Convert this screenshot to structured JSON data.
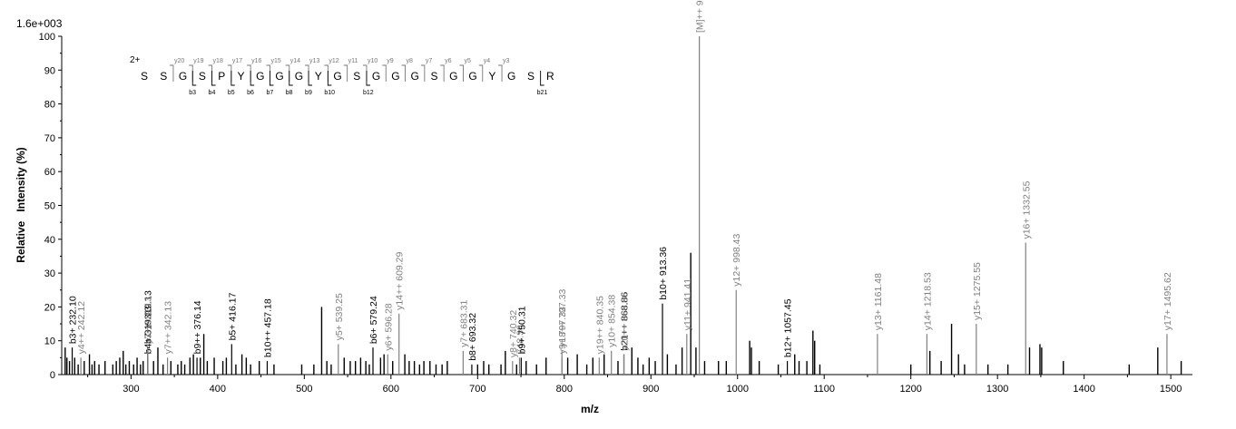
{
  "chart_data": {
    "type": "bar",
    "scale_label": "1.6e+003",
    "xlabel": "m/z",
    "ylabel": "Relative   Intensity (%)",
    "xlim": [
      220,
      1525
    ],
    "ylim": [
      0,
      100
    ],
    "x_ticks": [
      300,
      400,
      500,
      600,
      700,
      800,
      900,
      1000,
      1100,
      1200,
      1300,
      1400,
      1500
    ],
    "y_ticks": [
      0,
      10,
      20,
      30,
      40,
      50,
      60,
      70,
      80,
      90,
      100
    ],
    "colors": {
      "b_ion": "#000000",
      "y_ion": "#808080",
      "unassigned": "#000000",
      "precursor": "#808080"
    },
    "annotated_peaks": [
      {
        "mz": 232.1,
        "intensity": 8,
        "label": "b3+ 232.10",
        "kind": "b"
      },
      {
        "mz": 242.12,
        "intensity": 5,
        "label": "y4++ 242.12",
        "kind": "y"
      },
      {
        "mz": 319.13,
        "intensity": 5,
        "label": "b4+ 319.13",
        "kind": "b"
      },
      {
        "mz": 319.13,
        "intensity": 8,
        "label": "b7++ 319.13",
        "kind": "b"
      },
      {
        "mz": 319.13,
        "intensity": 8,
        "label": "y3+ 319.13",
        "kind": "y"
      },
      {
        "mz": 342.13,
        "intensity": 5,
        "label": "y7++ 342.13",
        "kind": "y"
      },
      {
        "mz": 376.14,
        "intensity": 5,
        "label": "b9++ 376.14",
        "kind": "b"
      },
      {
        "mz": 416.17,
        "intensity": 9,
        "label": "b5+ 416.17",
        "kind": "b"
      },
      {
        "mz": 457.18,
        "intensity": 4,
        "label": "b10++ 457.18",
        "kind": "b"
      },
      {
        "mz": 539.25,
        "intensity": 9,
        "label": "y5+ 539.25",
        "kind": "y"
      },
      {
        "mz": 579.24,
        "intensity": 8,
        "label": "b6+ 579.24",
        "kind": "b"
      },
      {
        "mz": 596.28,
        "intensity": 6,
        "label": "y6+ 596.28",
        "kind": "y"
      },
      {
        "mz": 609.29,
        "intensity": 18,
        "label": "y14++ 609.29",
        "kind": "y"
      },
      {
        "mz": 683.31,
        "intensity": 7,
        "label": "y7+ 683.31",
        "kind": "y"
      },
      {
        "mz": 693.32,
        "intensity": 3,
        "label": "b8+ 693.32",
        "kind": "b"
      },
      {
        "mz": 740.32,
        "intensity": 4,
        "label": "y8+ 740.32",
        "kind": "y"
      },
      {
        "mz": 748.36,
        "intensity": 5,
        "label": "748.36",
        "kind": "y"
      },
      {
        "mz": 750.31,
        "intensity": 5,
        "label": "b9+ 750.31",
        "kind": "b"
      },
      {
        "mz": 797.33,
        "intensity": 5,
        "label": "y9+ 797.33",
        "kind": "y"
      },
      {
        "mz": 797.33,
        "intensity": 7,
        "label": "y18++ 797.33",
        "kind": "y"
      },
      {
        "mz": 840.35,
        "intensity": 5,
        "label": "y19++ 840.35",
        "kind": "y"
      },
      {
        "mz": 854.38,
        "intensity": 7,
        "label": "y10+ 854.38",
        "kind": "y"
      },
      {
        "mz": 868.86,
        "intensity": 6,
        "label": "b21++ 868.86",
        "kind": "b"
      },
      {
        "mz": 868.86,
        "intensity": 6,
        "label": "y20++ 868.86",
        "kind": "y"
      },
      {
        "mz": 913.36,
        "intensity": 21,
        "label": "b10+ 913.36",
        "kind": "b"
      },
      {
        "mz": 941.41,
        "intensity": 12,
        "label": "y11+ 941.41",
        "kind": "y"
      },
      {
        "mz": 955.91,
        "intensity": 100,
        "label": "[M]++ 955.91",
        "kind": "y"
      },
      {
        "mz": 998.43,
        "intensity": 25,
        "label": "y12+ 998.43",
        "kind": "y"
      },
      {
        "mz": 1057.45,
        "intensity": 4,
        "label": "b12+ 1057.45",
        "kind": "b"
      },
      {
        "mz": 1161.48,
        "intensity": 12,
        "label": "y13+ 1161.48",
        "kind": "y"
      },
      {
        "mz": 1218.53,
        "intensity": 12,
        "label": "y14+ 1218.53",
        "kind": "y"
      },
      {
        "mz": 1275.55,
        "intensity": 15,
        "label": "y15+ 1275.55",
        "kind": "y"
      },
      {
        "mz": 1332.55,
        "intensity": 39,
        "label": "y16+ 1332.55",
        "kind": "y"
      },
      {
        "mz": 1495.62,
        "intensity": 12,
        "label": "y17+ 1495.62",
        "kind": "y"
      }
    ],
    "unlabeled_peaks": [
      [
        224,
        8
      ],
      [
        226,
        5
      ],
      [
        229,
        4
      ],
      [
        235,
        5
      ],
      [
        239,
        3
      ],
      [
        246,
        4
      ],
      [
        252,
        6
      ],
      [
        255,
        3
      ],
      [
        258,
        4
      ],
      [
        263,
        3
      ],
      [
        270,
        4
      ],
      [
        279,
        3
      ],
      [
        283,
        4
      ],
      [
        287,
        5
      ],
      [
        291,
        7
      ],
      [
        294,
        3
      ],
      [
        298,
        4
      ],
      [
        303,
        3
      ],
      [
        307,
        5
      ],
      [
        311,
        3
      ],
      [
        314,
        4
      ],
      [
        326,
        4
      ],
      [
        331,
        8
      ],
      [
        337,
        3
      ],
      [
        346,
        4
      ],
      [
        354,
        3
      ],
      [
        358,
        4
      ],
      [
        362,
        3
      ],
      [
        368,
        5
      ],
      [
        372,
        6
      ],
      [
        380,
        5
      ],
      [
        384,
        12
      ],
      [
        388,
        4
      ],
      [
        396,
        5
      ],
      [
        406,
        4
      ],
      [
        410,
        5
      ],
      [
        421,
        3
      ],
      [
        428,
        6
      ],
      [
        433,
        5
      ],
      [
        438,
        3
      ],
      [
        448,
        4
      ],
      [
        465,
        3
      ],
      [
        497,
        3
      ],
      [
        511,
        3
      ],
      [
        520,
        20
      ],
      [
        526,
        4
      ],
      [
        531,
        3
      ],
      [
        546,
        5
      ],
      [
        553,
        4
      ],
      [
        559,
        4
      ],
      [
        565,
        5
      ],
      [
        571,
        4
      ],
      [
        575,
        3
      ],
      [
        588,
        5
      ],
      [
        592,
        6
      ],
      [
        602,
        4
      ],
      [
        616,
        6
      ],
      [
        621,
        4
      ],
      [
        627,
        4
      ],
      [
        633,
        3
      ],
      [
        638,
        4
      ],
      [
        645,
        4
      ],
      [
        652,
        3
      ],
      [
        659,
        3
      ],
      [
        665,
        4
      ],
      [
        700,
        3
      ],
      [
        707,
        4
      ],
      [
        713,
        3
      ],
      [
        727,
        3
      ],
      [
        732,
        7
      ],
      [
        745,
        3
      ],
      [
        756,
        4
      ],
      [
        768,
        3
      ],
      [
        779,
        5
      ],
      [
        804,
        5
      ],
      [
        815,
        6
      ],
      [
        826,
        3
      ],
      [
        833,
        5
      ],
      [
        846,
        6
      ],
      [
        862,
        4
      ],
      [
        878,
        8
      ],
      [
        885,
        5
      ],
      [
        891,
        3
      ],
      [
        898,
        5
      ],
      [
        905,
        4
      ],
      [
        919,
        6
      ],
      [
        929,
        3
      ],
      [
        936,
        8
      ],
      [
        946,
        36
      ],
      [
        952,
        8
      ],
      [
        962,
        4
      ],
      [
        978,
        4
      ],
      [
        987,
        4
      ],
      [
        1014,
        10
      ],
      [
        1016,
        8
      ],
      [
        1025,
        4
      ],
      [
        1047,
        3
      ],
      [
        1066,
        6
      ],
      [
        1071,
        4
      ],
      [
        1080,
        4
      ],
      [
        1087,
        13
      ],
      [
        1089,
        10
      ],
      [
        1095,
        3
      ],
      [
        1200,
        3
      ],
      [
        1222,
        7
      ],
      [
        1235,
        4
      ],
      [
        1247,
        15
      ],
      [
        1255,
        6
      ],
      [
        1262,
        3
      ],
      [
        1289,
        3
      ],
      [
        1312,
        3
      ],
      [
        1337,
        8
      ],
      [
        1349,
        9
      ],
      [
        1351,
        8
      ],
      [
        1376,
        4
      ],
      [
        1452,
        3
      ],
      [
        1485,
        8
      ],
      [
        1512,
        4
      ]
    ],
    "sequence": {
      "charge": "2+",
      "residues": [
        "S",
        "S",
        "G",
        "S",
        "P",
        "Y",
        "G",
        "G",
        "G",
        "Y",
        "G",
        "S",
        "G",
        "G",
        "G",
        "S",
        "G",
        "G",
        "Y",
        "G",
        "S",
        "R"
      ],
      "y_ions": [
        {
          "after": 2,
          "label": "y20"
        },
        {
          "after": 3,
          "label": "y19"
        },
        {
          "after": 4,
          "label": "y18"
        },
        {
          "after": 5,
          "label": "y17"
        },
        {
          "after": 6,
          "label": "y16"
        },
        {
          "after": 7,
          "label": "y15"
        },
        {
          "after": 8,
          "label": "y14"
        },
        {
          "after": 9,
          "label": "y13"
        },
        {
          "after": 10,
          "label": "y12"
        },
        {
          "after": 11,
          "label": "y11"
        },
        {
          "after": 12,
          "label": "y10"
        },
        {
          "after": 13,
          "label": "y9"
        },
        {
          "after": 14,
          "label": "y8"
        },
        {
          "after": 15,
          "label": "y7"
        },
        {
          "after": 16,
          "label": "y6"
        },
        {
          "after": 17,
          "label": "y5"
        },
        {
          "after": 18,
          "label": "y4"
        },
        {
          "after": 19,
          "label": "y3"
        }
      ],
      "b_ions": [
        {
          "after": 3,
          "label": "b3"
        },
        {
          "after": 4,
          "label": "b4"
        },
        {
          "after": 5,
          "label": "b5"
        },
        {
          "after": 6,
          "label": "b6"
        },
        {
          "after": 7,
          "label": "b7"
        },
        {
          "after": 8,
          "label": "b8"
        },
        {
          "after": 9,
          "label": "b9"
        },
        {
          "after": 10,
          "label": "b10"
        },
        {
          "after": 12,
          "label": "b12"
        },
        {
          "after": 21,
          "label": "b21"
        }
      ]
    }
  }
}
